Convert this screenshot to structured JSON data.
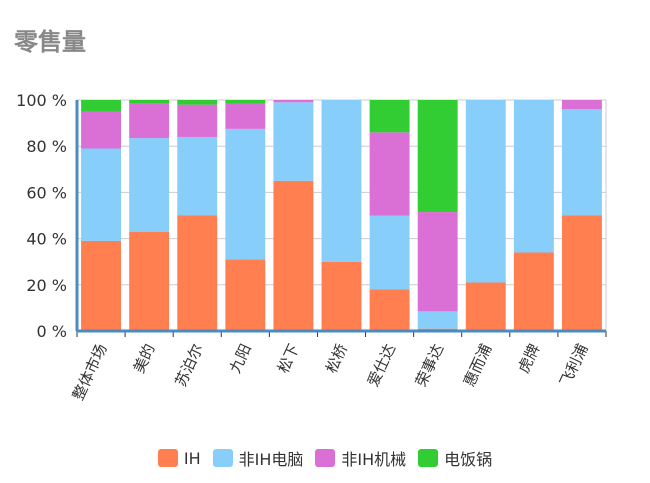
{
  "title": "零售量",
  "chart_data": {
    "type": "bar",
    "stacked": true,
    "percent": true,
    "categories": [
      "整体市场",
      "美的",
      "苏泊尔",
      "九阳",
      "松下",
      "松桥",
      "爱仕达",
      "荣事达",
      "惠而浦",
      "虎牌",
      "飞利浦"
    ],
    "series": [
      {
        "name": "IH",
        "color": "#ff7f50",
        "values": [
          39,
          43,
          50,
          31,
          65,
          30,
          18,
          1,
          21,
          34,
          50
        ]
      },
      {
        "name": "非IH电脑",
        "color": "#87cefa",
        "values": [
          40,
          40.5,
          34,
          56.5,
          34,
          70,
          32,
          7.5,
          79,
          66,
          46
        ]
      },
      {
        "name": "非IH机械",
        "color": "#da70d6",
        "values": [
          16,
          15.2,
          14,
          11,
          1,
          0,
          36,
          43,
          0,
          0,
          4
        ]
      },
      {
        "name": "电饭锅",
        "color": "#32cd32",
        "values": [
          5,
          1.3,
          2,
          1.5,
          0,
          0,
          14,
          48.5,
          0,
          0,
          0
        ]
      }
    ],
    "yticks": [
      "0 %",
      "20 %",
      "40 %",
      "60 %",
      "80 %",
      "100 %"
    ],
    "ylim": [
      0,
      100
    ],
    "grid": true,
    "legend": "bottom"
  }
}
